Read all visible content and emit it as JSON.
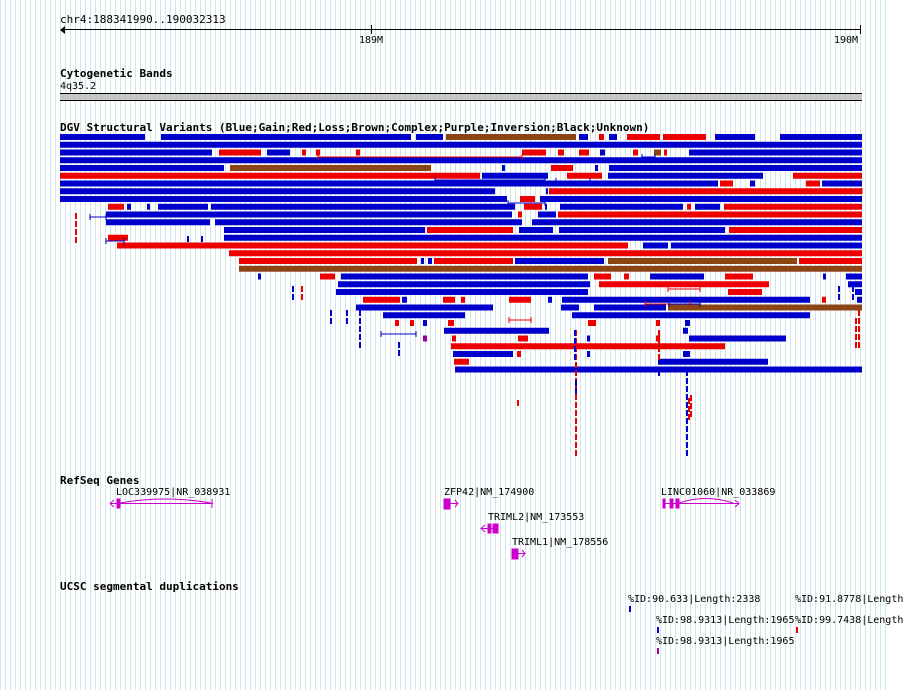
{
  "locus": "chr4:188341990..190032313",
  "ruler": {
    "ticks": [
      "189M",
      "190M"
    ]
  },
  "tracks": {
    "cytoband": {
      "title": "Cytogenetic Bands",
      "band": "4q35.2"
    },
    "dgv": {
      "title": "DGV Structural Variants (Blue;Gain;Red;Loss;Brown;Complex;Purple;Inversion;Black;Unknown)"
    },
    "refseq": {
      "title": "RefSeq Genes",
      "genes": [
        "LOC339975|NR_038931",
        "ZFP42|NM_174900",
        "TRIML2|NM_173553",
        "TRIML1|NM_178556",
        "LINC01060|NR_033869"
      ]
    },
    "segdup": {
      "title": "UCSC segmental duplications",
      "features": [
        "%ID:90.633|Length:2338",
        "%ID:91.8778|Length",
        "%ID:98.9313|Length:1965",
        "%ID:99.7438|Length",
        "%ID:98.9313|Length:1965"
      ]
    }
  },
  "colors": {
    "gain": "#0000cc",
    "loss": "#ee0000",
    "complex": "#8b4513",
    "inversion": "#990099",
    "gene": "#cc00cc",
    "grid": "#cfe5ea"
  }
}
